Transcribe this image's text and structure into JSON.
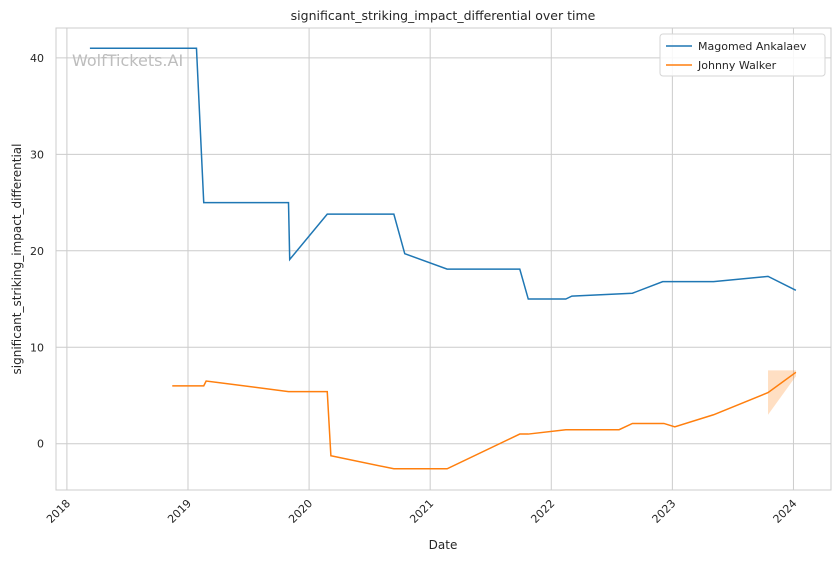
{
  "chart_data": {
    "type": "line",
    "title": "significant_striking_impact_differential over time",
    "xlabel": "Date",
    "ylabel": "significant_striking_impact_differential",
    "xlim": [
      2017.91,
      2024.31
    ],
    "ylim": [
      -4.8,
      43.1
    ],
    "xticks": [
      2018,
      2019,
      2020,
      2021,
      2022,
      2023,
      2024
    ],
    "yticks": [
      0,
      10,
      20,
      30,
      40
    ],
    "grid": true,
    "legend_position": "top-right",
    "watermark": "WolfTickets.AI",
    "series": [
      {
        "name": "Magomed Ankalaev",
        "color": "#1f77b4",
        "x": [
          2018.19,
          2019.07,
          2019.13,
          2019.83,
          2019.84,
          2020.15,
          2020.7,
          2020.79,
          2021.14,
          2021.74,
          2021.81,
          2022.12,
          2022.17,
          2022.67,
          2022.92,
          2023.34,
          2023.79,
          2024.02
        ],
        "y": [
          41,
          41,
          25,
          25,
          19.1,
          23.8,
          23.8,
          19.7,
          18.1,
          18.1,
          15.0,
          15.0,
          15.3,
          15.6,
          16.8,
          16.8,
          17.35,
          15.9
        ]
      },
      {
        "name": "Johnny Walker",
        "color": "#ff7f0e",
        "x": [
          2018.87,
          2019.13,
          2019.15,
          2019.83,
          2020.15,
          2020.18,
          2020.7,
          2021.14,
          2021.74,
          2021.81,
          2022.12,
          2022.56,
          2022.67,
          2022.93,
          2023.02,
          2023.34,
          2023.79,
          2024.02
        ],
        "y": [
          6.0,
          6.0,
          6.5,
          5.4,
          5.4,
          -1.25,
          -2.6,
          -2.6,
          1.0,
          1.0,
          1.45,
          1.45,
          2.1,
          2.1,
          1.75,
          3.0,
          5.3,
          7.4
        ],
        "band": {
          "x": [
            2023.79,
            2024.02
          ],
          "lower": [
            3.0,
            7.0
          ],
          "upper": [
            7.6,
            7.6
          ]
        }
      }
    ]
  }
}
